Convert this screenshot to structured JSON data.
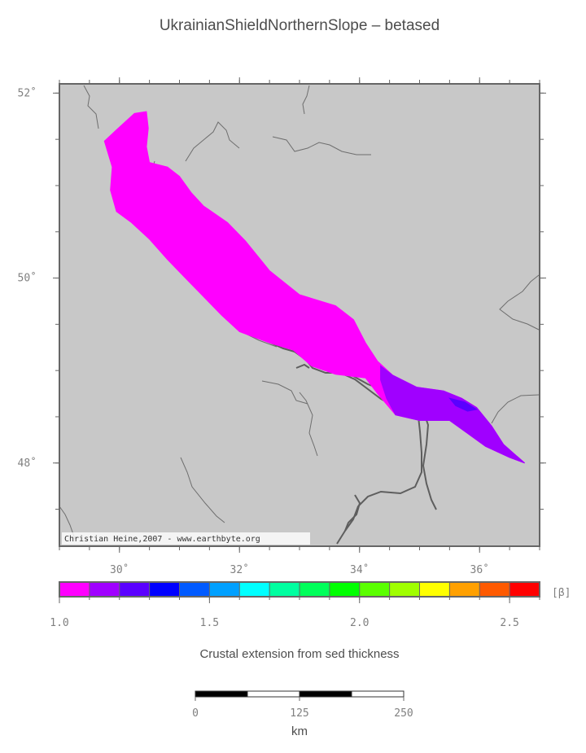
{
  "title": "UkrainianShieldNorthernSlope – betased",
  "map": {
    "lat_ticks": [
      {
        "value": 52,
        "label": "52˚"
      },
      {
        "value": 50,
        "label": "50˚"
      },
      {
        "value": 48,
        "label": "48˚"
      }
    ],
    "lon_ticks": [
      {
        "value": 30,
        "label": "30˚"
      },
      {
        "value": 32,
        "label": "32˚"
      },
      {
        "value": 34,
        "label": "34˚"
      },
      {
        "value": 36,
        "label": "36˚"
      }
    ],
    "lon_range": [
      29,
      37
    ],
    "lat_range": [
      47.1,
      52.1
    ],
    "background_color": "#c8c8c8",
    "credit": "Christian Heine,2007 - www.earthbyte.org",
    "region": {
      "name": "Ukrainian Shield Northern Slope",
      "value_beta": 1.0,
      "color": "#ff00ff",
      "boundary": [
        [
          29.75,
          51.48
        ],
        [
          29.98,
          51.62
        ],
        [
          30.25,
          51.78
        ],
        [
          30.45,
          51.8
        ],
        [
          30.48,
          51.62
        ],
        [
          30.45,
          51.42
        ],
        [
          30.5,
          51.25
        ],
        [
          30.8,
          51.2
        ],
        [
          31.0,
          51.1
        ],
        [
          31.2,
          50.92
        ],
        [
          31.4,
          50.78
        ],
        [
          31.8,
          50.6
        ],
        [
          32.1,
          50.4
        ],
        [
          32.5,
          50.08
        ],
        [
          33.0,
          49.82
        ],
        [
          33.6,
          49.7
        ],
        [
          33.9,
          49.55
        ],
        [
          34.1,
          49.3
        ],
        [
          34.3,
          49.1
        ],
        [
          34.55,
          48.95
        ],
        [
          34.95,
          48.82
        ],
        [
          35.4,
          48.78
        ],
        [
          35.7,
          48.7
        ],
        [
          35.95,
          48.6
        ],
        [
          36.2,
          48.4
        ],
        [
          36.4,
          48.2
        ],
        [
          36.75,
          48.0
        ],
        [
          36.5,
          48.06
        ],
        [
          36.1,
          48.18
        ],
        [
          35.8,
          48.32
        ],
        [
          35.5,
          48.46
        ],
        [
          35.0,
          48.46
        ],
        [
          34.6,
          48.52
        ],
        [
          34.3,
          48.75
        ],
        [
          34.1,
          48.92
        ],
        [
          33.6,
          48.96
        ],
        [
          33.2,
          49.05
        ],
        [
          32.9,
          49.22
        ],
        [
          32.5,
          49.3
        ],
        [
          32.0,
          49.42
        ],
        [
          31.7,
          49.6
        ],
        [
          31.4,
          49.8
        ],
        [
          31.1,
          50.0
        ],
        [
          30.8,
          50.2
        ],
        [
          30.5,
          50.42
        ],
        [
          30.2,
          50.6
        ],
        [
          29.95,
          50.72
        ],
        [
          29.85,
          50.95
        ],
        [
          29.88,
          51.2
        ]
      ]
    },
    "sub_region": {
      "value_beta": 1.1,
      "color": "#a000ff",
      "boundary": [
        [
          34.35,
          49.05
        ],
        [
          34.55,
          48.95
        ],
        [
          34.95,
          48.82
        ],
        [
          35.4,
          48.78
        ],
        [
          35.7,
          48.7
        ],
        [
          35.95,
          48.6
        ],
        [
          36.2,
          48.4
        ],
        [
          36.4,
          48.2
        ],
        [
          36.75,
          48.0
        ],
        [
          36.5,
          48.06
        ],
        [
          36.1,
          48.18
        ],
        [
          35.8,
          48.32
        ],
        [
          35.5,
          48.46
        ],
        [
          35.0,
          48.46
        ],
        [
          34.6,
          48.52
        ],
        [
          34.45,
          48.7
        ],
        [
          34.35,
          48.9
        ]
      ]
    },
    "deep_patch": {
      "value_beta": 1.3,
      "color": "#5a00ff",
      "boundary": [
        [
          35.5,
          48.7
        ],
        [
          35.75,
          48.66
        ],
        [
          35.95,
          48.58
        ],
        [
          35.8,
          48.56
        ],
        [
          35.6,
          48.62
        ]
      ]
    }
  },
  "colorbar": {
    "min": 1.0,
    "max": 2.6,
    "unit_label": "[β]",
    "tick_labels": [
      {
        "value": 1.0,
        "label": "1.0"
      },
      {
        "value": 1.5,
        "label": "1.5"
      },
      {
        "value": 2.0,
        "label": "2.0"
      },
      {
        "value": 2.5,
        "label": "2.5"
      }
    ],
    "colors": [
      "#ff00ff",
      "#a000ff",
      "#5a00ff",
      "#0000ff",
      "#005aff",
      "#00a0ff",
      "#00ffff",
      "#00ffa0",
      "#00ff5a",
      "#00ff00",
      "#5aff00",
      "#a0ff00",
      "#ffff00",
      "#ffa000",
      "#ff5a00",
      "#ff0000"
    ],
    "caption": "Crustal extension from sed thickness"
  },
  "scalebar": {
    "max_km": 250,
    "tick_labels": [
      {
        "value": 0,
        "label": "0"
      },
      {
        "value": 125,
        "label": "125"
      },
      {
        "value": 250,
        "label": "250"
      }
    ],
    "unit": "km"
  }
}
